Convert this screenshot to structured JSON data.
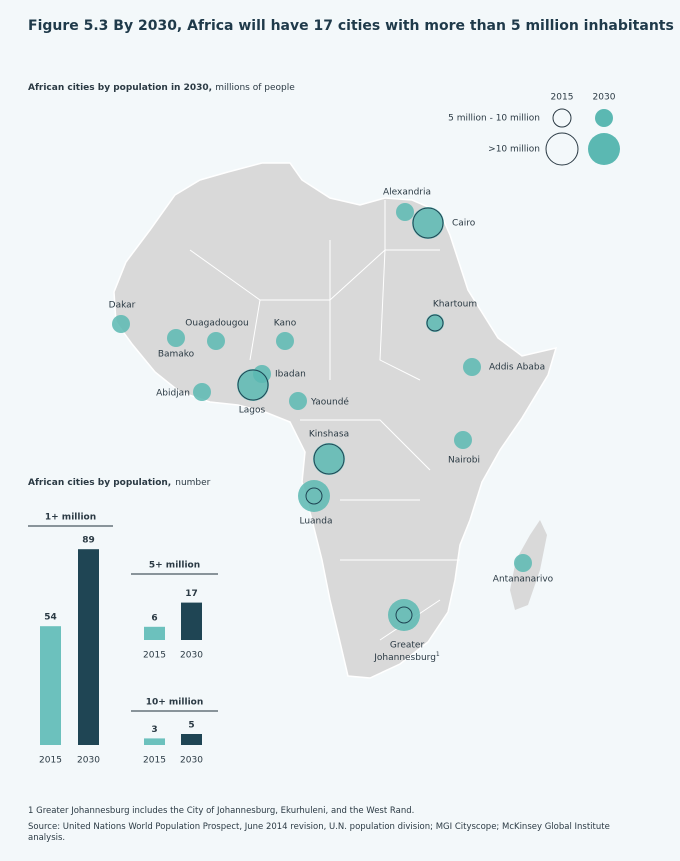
{
  "title": "Figure 5.3 By 2030, Africa will have 17 cities with more than 5 million inhabitants",
  "map": {
    "subtitle_bold": "African cities by population in 2030,",
    "subtitle_rest": "millions of people",
    "legend": {
      "years": [
        "2015",
        "2030"
      ],
      "tiers": [
        "5 million - 10 million",
        ">10 million"
      ]
    },
    "cities": [
      {
        "label": "Alexandria",
        "tier_2015": null,
        "tier_2030": 0
      },
      {
        "label": "Cairo",
        "tier_2015": 1,
        "tier_2030": 1
      },
      {
        "label": "Khartoum",
        "tier_2015": 0,
        "tier_2030": 0
      },
      {
        "label": "Dakar",
        "tier_2015": null,
        "tier_2030": 0
      },
      {
        "label": "Ouagadougou",
        "tier_2015": null,
        "tier_2030": 0
      },
      {
        "label": "Bamako",
        "tier_2015": null,
        "tier_2030": 0
      },
      {
        "label": "Kano",
        "tier_2015": null,
        "tier_2030": 0
      },
      {
        "label": "Abidjan",
        "tier_2015": null,
        "tier_2030": 0
      },
      {
        "label": "Ibadan",
        "tier_2015": null,
        "tier_2030": 0
      },
      {
        "label": "Lagos",
        "tier_2015": 1,
        "tier_2030": 1
      },
      {
        "label": "Yaoundé",
        "tier_2015": null,
        "tier_2030": 0
      },
      {
        "label": "Addis Ababa",
        "tier_2015": null,
        "tier_2030": 0
      },
      {
        "label": "Kinshasa",
        "tier_2015": 1,
        "tier_2030": 1
      },
      {
        "label": "Nairobi",
        "tier_2015": null,
        "tier_2030": 0
      },
      {
        "label": "Luanda",
        "tier_2015": 0,
        "tier_2030": 1
      },
      {
        "label": "Greater",
        "label_line2": "Johannesburg",
        "footnote_mark": "1",
        "tier_2015": 0,
        "tier_2030": 1
      },
      {
        "label": "Antananarivo",
        "tier_2015": null,
        "tier_2030": 0
      }
    ]
  },
  "bars_heading_bold": "African cities by population,",
  "bars_heading_rest": "number",
  "chart_data": [
    {
      "type": "bar",
      "title": "1+ million",
      "categories": [
        "2015",
        "2030"
      ],
      "values": [
        54,
        89
      ],
      "colors": [
        "#6cc1bd",
        "#1f4554"
      ]
    },
    {
      "type": "bar",
      "title": "5+ million",
      "categories": [
        "2015",
        "2030"
      ],
      "values": [
        6,
        17
      ],
      "colors": [
        "#6cc1bd",
        "#1f4554"
      ]
    },
    {
      "type": "bar",
      "title": "10+ million",
      "categories": [
        "2015",
        "2030"
      ],
      "values": [
        3,
        5
      ],
      "colors": [
        "#6cc1bd",
        "#1f4554"
      ]
    }
  ],
  "footnote": "1 Greater Johannesburg includes the City of Johannesburg, Ekurhuleni, and the West Rand.",
  "source": "Source: United Nations World Population Prospect, June 2014 revision, U.N. population division; MGI Cityscope; McKinsey Global Institute analysis."
}
